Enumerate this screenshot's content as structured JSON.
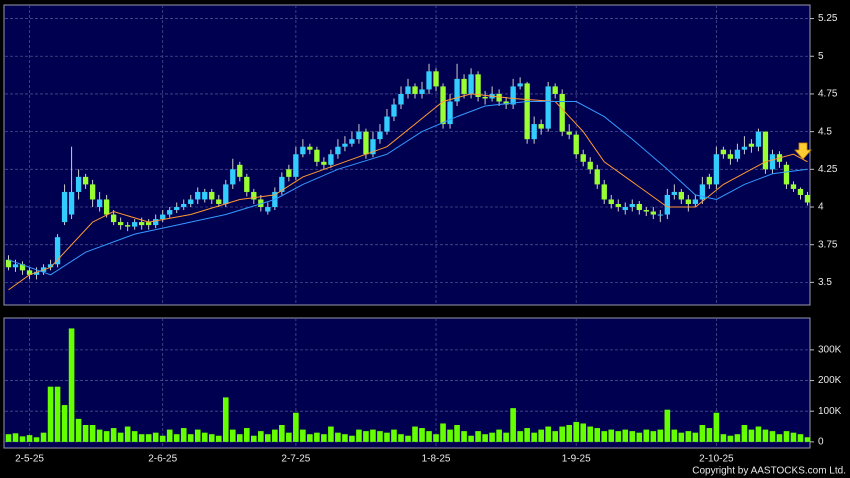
{
  "chart_data": [
    {
      "type": "candlestick",
      "up_color": "#33ccff",
      "down_color": "#99ff33",
      "ylim": [
        3.35,
        5.34
      ],
      "yticks": [
        3.5,
        3.75,
        4,
        4.25,
        4.5,
        4.75,
        5,
        5.25
      ],
      "grid": true,
      "open": [
        3.65,
        3.6,
        3.62,
        3.58,
        3.55,
        3.57,
        3.6,
        3.62,
        3.9,
        3.95,
        4.1,
        4.2,
        4.15,
        4.0,
        4.05,
        3.95,
        3.9,
        3.88,
        3.87,
        3.9,
        3.9,
        3.88,
        3.92,
        3.95,
        3.98,
        4.0,
        4.02,
        4.05,
        4.05,
        4.1,
        4.05,
        4.02,
        4.15,
        4.28,
        4.2,
        4.1,
        4.05,
        3.97,
        4.0,
        4.1,
        4.25,
        4.2,
        4.35,
        4.4,
        4.38,
        4.3,
        4.28,
        4.35,
        4.4,
        4.42,
        4.45,
        4.5,
        4.35,
        4.45,
        4.5,
        4.6,
        4.68,
        4.75,
        4.8,
        4.75,
        4.78,
        4.9,
        4.8,
        4.55,
        4.7,
        4.85,
        4.75,
        4.88,
        4.73,
        4.72,
        4.75,
        4.7,
        4.68,
        4.8,
        4.82,
        4.45,
        4.55,
        4.52,
        4.8,
        4.75,
        4.5,
        4.48,
        4.35,
        4.3,
        4.25,
        4.15,
        4.05,
        4.02,
        3.98,
        4.0,
        4.02,
        3.98,
        3.97,
        3.95,
        3.95,
        4.08,
        4.1,
        4.05,
        4.02,
        4.05,
        4.2,
        4.15,
        4.38,
        4.35,
        4.32,
        4.38,
        4.42,
        4.4,
        4.5,
        4.25,
        4.35,
        4.28,
        4.15,
        4.12,
        4.08
      ],
      "high": [
        3.68,
        3.65,
        3.64,
        3.6,
        3.6,
        3.62,
        3.65,
        3.82,
        4.15,
        4.4,
        4.25,
        4.22,
        4.18,
        4.1,
        4.08,
        3.98,
        3.93,
        3.9,
        3.92,
        3.93,
        3.92,
        3.95,
        3.98,
        4.0,
        4.03,
        4.05,
        4.08,
        4.13,
        4.12,
        4.12,
        4.08,
        4.18,
        4.32,
        4.3,
        4.22,
        4.12,
        4.08,
        4.03,
        4.13,
        4.23,
        4.28,
        4.4,
        4.45,
        4.42,
        4.4,
        4.33,
        4.38,
        4.45,
        4.47,
        4.5,
        4.55,
        4.52,
        4.5,
        4.55,
        4.65,
        4.72,
        4.8,
        4.85,
        4.82,
        4.83,
        4.95,
        4.92,
        4.82,
        4.75,
        4.95,
        4.88,
        4.92,
        4.9,
        4.77,
        4.8,
        4.78,
        4.73,
        4.85,
        4.86,
        4.83,
        4.6,
        4.58,
        4.83,
        4.82,
        4.78,
        4.55,
        4.5,
        4.38,
        4.33,
        4.28,
        4.18,
        4.08,
        4.05,
        4.03,
        4.05,
        4.04,
        4.0,
        4.0,
        3.98,
        4.12,
        4.15,
        4.12,
        4.08,
        4.08,
        4.2,
        4.22,
        4.4,
        4.4,
        4.38,
        4.42,
        4.47,
        4.45,
        4.52,
        4.5,
        4.38,
        4.37,
        4.3,
        4.17,
        4.13,
        4.1
      ],
      "low": [
        3.58,
        3.57,
        3.55,
        3.52,
        3.52,
        3.55,
        3.58,
        3.6,
        3.88,
        3.92,
        4.05,
        4.12,
        4.0,
        3.97,
        3.93,
        3.88,
        3.85,
        3.84,
        3.85,
        3.85,
        3.85,
        3.86,
        3.9,
        3.93,
        3.96,
        3.98,
        4.0,
        4.02,
        4.03,
        4.02,
        4.0,
        4.0,
        4.12,
        4.17,
        4.07,
        4.02,
        3.97,
        3.95,
        3.98,
        4.08,
        4.17,
        4.18,
        4.33,
        4.35,
        4.27,
        4.25,
        4.26,
        4.32,
        4.37,
        4.4,
        4.42,
        4.32,
        4.33,
        4.42,
        4.48,
        4.57,
        4.65,
        4.72,
        4.72,
        4.72,
        4.75,
        4.77,
        4.52,
        4.52,
        4.67,
        4.72,
        4.72,
        4.7,
        4.68,
        4.7,
        4.67,
        4.65,
        4.65,
        4.78,
        4.42,
        4.42,
        4.48,
        4.5,
        4.72,
        4.47,
        4.45,
        4.32,
        4.27,
        4.22,
        4.12,
        4.02,
        3.99,
        3.97,
        3.95,
        3.97,
        3.95,
        3.94,
        3.92,
        3.9,
        3.92,
        4.05,
        4.02,
        3.97,
        4.0,
        4.02,
        4.12,
        4.12,
        4.32,
        4.28,
        4.3,
        4.35,
        4.36,
        4.37,
        4.22,
        4.22,
        4.26,
        4.12,
        4.1,
        4.05,
        4.01
      ],
      "close": [
        3.6,
        3.62,
        3.58,
        3.55,
        3.57,
        3.6,
        3.62,
        3.8,
        4.1,
        4.1,
        4.2,
        4.15,
        4.05,
        4.05,
        3.95,
        3.9,
        3.88,
        3.87,
        3.9,
        3.88,
        3.88,
        3.92,
        3.95,
        3.98,
        4.0,
        4.02,
        4.05,
        4.1,
        4.1,
        4.05,
        4.02,
        4.15,
        4.25,
        4.2,
        4.1,
        4.05,
        4.0,
        4.0,
        4.1,
        4.2,
        4.2,
        4.35,
        4.4,
        4.38,
        4.3,
        4.28,
        4.35,
        4.4,
        4.42,
        4.45,
        4.5,
        4.35,
        4.45,
        4.5,
        4.6,
        4.68,
        4.75,
        4.8,
        4.75,
        4.78,
        4.9,
        4.8,
        4.55,
        4.7,
        4.85,
        4.75,
        4.88,
        4.73,
        4.72,
        4.75,
        4.7,
        4.68,
        4.8,
        4.82,
        4.45,
        4.55,
        4.52,
        4.8,
        4.75,
        4.5,
        4.48,
        4.35,
        4.3,
        4.25,
        4.15,
        4.05,
        4.02,
        4.0,
        4.0,
        4.02,
        3.98,
        3.97,
        3.95,
        3.95,
        4.08,
        4.1,
        4.05,
        4.02,
        4.05,
        4.15,
        4.15,
        4.35,
        4.35,
        4.32,
        4.38,
        4.4,
        4.4,
        4.5,
        4.25,
        4.35,
        4.3,
        4.15,
        4.12,
        4.08,
        4.03
      ],
      "lines": [
        {
          "color": "#ff9933",
          "x": [
            0,
            3,
            6,
            12,
            15,
            20,
            26,
            33,
            38,
            42,
            48,
            54,
            58,
            62,
            66,
            72,
            78,
            82,
            85,
            91,
            94,
            98,
            102,
            108,
            112,
            114
          ],
          "values": [
            3.45,
            3.55,
            3.6,
            3.9,
            3.97,
            3.9,
            3.95,
            4.05,
            4.08,
            4.2,
            4.3,
            4.4,
            4.55,
            4.7,
            4.75,
            4.72,
            4.7,
            4.5,
            4.3,
            4.1,
            4.0,
            4.0,
            4.15,
            4.3,
            4.35,
            4.3
          ]
        },
        {
          "color": "#3399ff",
          "x": [
            0,
            6,
            11,
            18,
            24,
            31,
            38,
            42,
            47,
            54,
            59,
            64,
            68,
            74,
            81,
            85,
            89,
            94,
            98,
            101,
            105,
            109,
            114
          ],
          "values": [
            3.65,
            3.55,
            3.7,
            3.82,
            3.88,
            3.95,
            4.05,
            4.15,
            4.25,
            4.35,
            4.5,
            4.6,
            4.67,
            4.7,
            4.7,
            4.6,
            4.45,
            4.25,
            4.08,
            4.05,
            4.15,
            4.22,
            4.25
          ]
        }
      ]
    },
    {
      "type": "bar",
      "color": "#66ff00",
      "ylim": [
        -20000,
        404000
      ],
      "yticks": [
        0,
        {
          "value": 100000,
          "label": "100K"
        },
        {
          "value": 200000,
          "label": "200K"
        },
        {
          "value": 300000,
          "label": "300K"
        }
      ],
      "grid": true,
      "categories": [
        null,
        null,
        null,
        "2-5-25",
        null,
        null,
        null,
        null,
        null,
        null,
        null,
        null,
        null,
        null,
        null,
        null,
        null,
        null,
        null,
        null,
        null,
        null,
        "2-6-25",
        null,
        null,
        null,
        null,
        null,
        null,
        null,
        null,
        null,
        null,
        null,
        null,
        null,
        null,
        null,
        null,
        null,
        null,
        "2-7-25",
        null,
        null,
        null,
        null,
        null,
        null,
        null,
        null,
        null,
        null,
        null,
        null,
        null,
        null,
        null,
        null,
        null,
        null,
        null,
        "1-8-25",
        null,
        null,
        null,
        null,
        null,
        null,
        null,
        null,
        null,
        null,
        null,
        null,
        null,
        null,
        null,
        null,
        null,
        null,
        null,
        "1-9-25",
        null,
        null,
        null,
        null,
        null,
        null,
        null,
        null,
        null,
        null,
        null,
        null,
        null,
        null,
        null,
        null,
        null,
        null,
        null,
        "2-10-25",
        null,
        null,
        null,
        null,
        null,
        null,
        null,
        null,
        null,
        null,
        null,
        null,
        null
      ],
      "values": [
        25000,
        28000,
        18000,
        22000,
        15000,
        30000,
        180000,
        180000,
        120000,
        370000,
        75000,
        55000,
        55000,
        40000,
        35000,
        45000,
        30000,
        50000,
        35000,
        25000,
        25000,
        30000,
        20000,
        40000,
        25000,
        45000,
        25000,
        40000,
        30000,
        25000,
        20000,
        145000,
        40000,
        25000,
        45000,
        20000,
        35000,
        25000,
        40000,
        55000,
        30000,
        95000,
        40000,
        25000,
        30000,
        25000,
        50000,
        30000,
        25000,
        20000,
        40000,
        35000,
        40000,
        35000,
        30000,
        40000,
        25000,
        20000,
        50000,
        45000,
        35000,
        25000,
        60000,
        40000,
        55000,
        35000,
        20000,
        35000,
        25000,
        30000,
        40000,
        30000,
        110000,
        35000,
        45000,
        30000,
        40000,
        50000,
        35000,
        50000,
        55000,
        65000,
        60000,
        50000,
        45000,
        35000,
        40000,
        35000,
        40000,
        35000,
        30000,
        40000,
        35000,
        40000,
        105000,
        40000,
        30000,
        35000,
        30000,
        55000,
        45000,
        95000,
        25000,
        20000,
        25000,
        55000,
        40000,
        50000,
        40000,
        35000,
        25000,
        35000,
        30000,
        25000,
        15000
      ]
    },
    {
      "copyright": "Copyright by AASTOCKS.com Ltd."
    }
  ]
}
